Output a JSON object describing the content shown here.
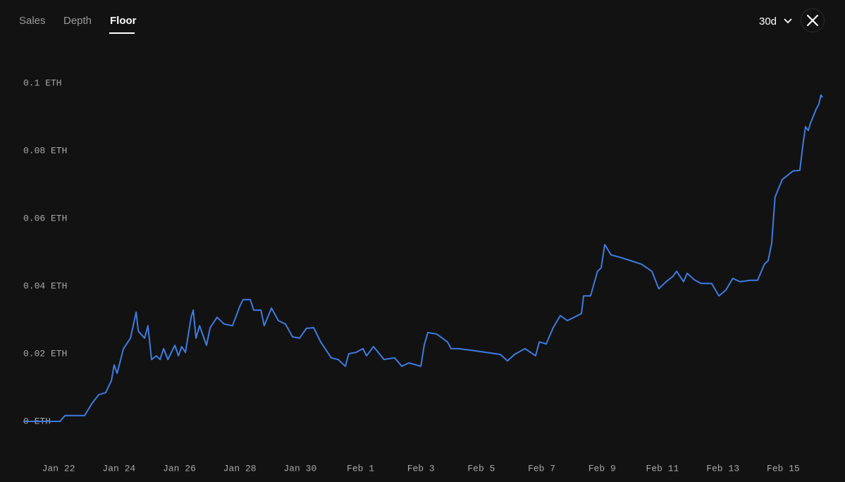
{
  "tabs": [
    "Sales",
    "Depth",
    "Floor"
  ],
  "range": "30d",
  "chart_data": {
    "type": "line",
    "x": [
      -1.17,
      -0.54,
      0.05,
      0.21,
      0.86,
      1.1,
      1.33,
      1.56,
      1.75,
      1.84,
      1.94,
      2.15,
      2.38,
      2.57,
      2.64,
      2.85,
      2.96,
      3.08,
      3.24,
      3.36,
      3.48,
      3.62,
      3.85,
      3.97,
      4.08,
      4.2,
      4.39,
      4.46,
      4.55,
      4.67,
      4.9,
      5.02,
      5.25,
      5.48,
      5.76,
      6.0,
      6.11,
      6.35,
      6.46,
      6.7,
      6.81,
      7.05,
      7.28,
      7.51,
      7.75,
      7.98,
      8.21,
      8.45,
      8.68,
      9.03,
      9.26,
      9.5,
      9.61,
      9.85,
      10.08,
      10.2,
      10.43,
      10.78,
      11.13,
      11.37,
      11.6,
      12.0,
      12.11,
      12.23,
      12.53,
      12.88,
      13.0,
      13.23,
      13.7,
      14.17,
      14.63,
      14.87,
      15.1,
      15.45,
      15.8,
      15.92,
      16.15,
      16.38,
      16.62,
      16.85,
      17.08,
      17.32,
      17.39,
      17.62,
      17.85,
      17.97,
      18.09,
      18.3,
      18.6,
      18.95,
      19.3,
      19.65,
      19.88,
      20.12,
      20.35,
      20.47,
      20.7,
      20.82,
      21.05,
      21.28,
      21.63,
      21.87,
      22.1,
      22.33,
      22.57,
      22.92,
      23.15,
      23.38,
      23.5,
      23.62,
      23.73,
      23.97,
      24.32,
      24.55,
      24.67,
      24.74,
      24.83,
      24.9,
      25.09,
      25.18,
      25.25,
      25.3
    ],
    "series": [
      {
        "name": "Floor",
        "color": "#3f7be0",
        "values": [
          0,
          0,
          0,
          0.0017,
          0.0017,
          0.0052,
          0.0079,
          0.0085,
          0.0121,
          0.0167,
          0.0142,
          0.0215,
          0.0246,
          0.0323,
          0.0267,
          0.0246,
          0.0283,
          0.0183,
          0.0194,
          0.0183,
          0.0215,
          0.0183,
          0.0225,
          0.0194,
          0.0221,
          0.0204,
          0.0308,
          0.0329,
          0.0246,
          0.0283,
          0.0225,
          0.0277,
          0.0308,
          0.0288,
          0.0283,
          0.034,
          0.036,
          0.036,
          0.0329,
          0.0329,
          0.0283,
          0.0335,
          0.0298,
          0.0288,
          0.025,
          0.0246,
          0.0275,
          0.0277,
          0.0235,
          0.0188,
          0.0183,
          0.0163,
          0.02,
          0.0204,
          0.0215,
          0.0194,
          0.0221,
          0.0183,
          0.0188,
          0.0163,
          0.0173,
          0.0163,
          0.0225,
          0.0263,
          0.0258,
          0.0235,
          0.0215,
          0.0215,
          0.021,
          0.0204,
          0.0198,
          0.0179,
          0.0198,
          0.0215,
          0.0194,
          0.0235,
          0.0229,
          0.0277,
          0.0313,
          0.0298,
          0.0308,
          0.0319,
          0.0371,
          0.0371,
          0.0444,
          0.0454,
          0.0523,
          0.0492,
          0.0485,
          0.0475,
          0.0465,
          0.0444,
          0.0392,
          0.0413,
          0.0429,
          0.0444,
          0.0413,
          0.0438,
          0.0419,
          0.0408,
          0.0408,
          0.0371,
          0.0388,
          0.0423,
          0.0413,
          0.0417,
          0.0417,
          0.0465,
          0.0475,
          0.0527,
          0.0663,
          0.0715,
          0.074,
          0.0742,
          0.0829,
          0.0871,
          0.086,
          0.0881,
          0.0923,
          0.0938,
          0.0965,
          0.0958
        ]
      }
    ],
    "xlim": [
      -1.17,
      25.3
    ],
    "xticks": [
      {
        "value": 0,
        "label": "Jan 22"
      },
      {
        "value": 2,
        "label": "Jan 24"
      },
      {
        "value": 4,
        "label": "Jan 26"
      },
      {
        "value": 6,
        "label": "Jan 28"
      },
      {
        "value": 8,
        "label": "Jan 30"
      },
      {
        "value": 10,
        "label": "Feb 1"
      },
      {
        "value": 12,
        "label": "Feb 3"
      },
      {
        "value": 14,
        "label": "Feb 5"
      },
      {
        "value": 16,
        "label": "Feb 7"
      },
      {
        "value": 18,
        "label": "Feb 9"
      },
      {
        "value": 20,
        "label": "Feb 11"
      },
      {
        "value": 22,
        "label": "Feb 13"
      },
      {
        "value": 24,
        "label": "Feb 15"
      }
    ],
    "ylim": [
      0,
      0.1
    ],
    "yticks": [
      {
        "value": 0,
        "label": "0 ETH"
      },
      {
        "value": 0.02,
        "label": "0.02 ETH"
      },
      {
        "value": 0.04,
        "label": "0.04 ETH"
      },
      {
        "value": 0.06,
        "label": "0.06 ETH"
      },
      {
        "value": 0.08,
        "label": "0.08 ETH"
      },
      {
        "value": 0.1,
        "label": "0.1 ETH"
      }
    ],
    "grid": false
  }
}
